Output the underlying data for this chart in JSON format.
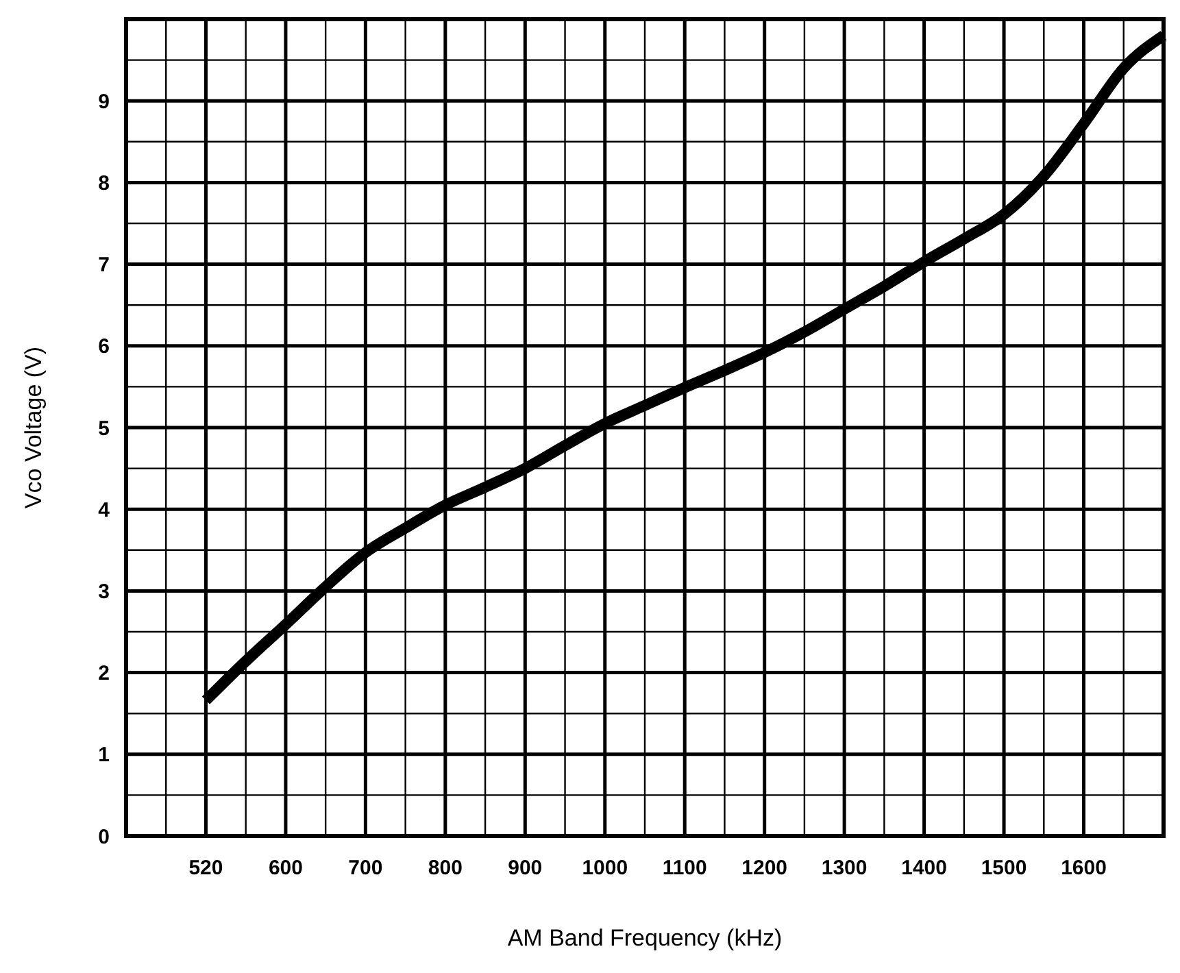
{
  "chart_data": {
    "type": "line",
    "xlabel": "AM Band Frequency (kHz)",
    "ylabel": "Vco Voltage (V)",
    "categories": [
      null,
      null,
      "520",
      null,
      "600",
      null,
      "700",
      null,
      "800",
      null,
      "900",
      null,
      "1000",
      null,
      "1100",
      null,
      "1200",
      null,
      "1300",
      null,
      "1400",
      null,
      "1500",
      null,
      "1600",
      null,
      null
    ],
    "series": [
      {
        "color": "#000000",
        "values": [
          null,
          null,
          1.66,
          2.14,
          2.59,
          3.05,
          3.47,
          3.77,
          4.05,
          4.27,
          4.5,
          4.78,
          5.05,
          5.27,
          5.49,
          5.7,
          5.92,
          6.17,
          6.45,
          6.73,
          7.03,
          7.31,
          7.61,
          8.08,
          8.72,
          9.4,
          9.8
        ]
      }
    ],
    "ylim": [
      0,
      10
    ],
    "yticks": [
      0,
      1,
      2,
      3,
      4,
      5,
      6,
      7,
      8,
      9,
      {
        "value": 10,
        "label": null
      }
    ],
    "grid": true,
    "line_style": "solid"
  }
}
